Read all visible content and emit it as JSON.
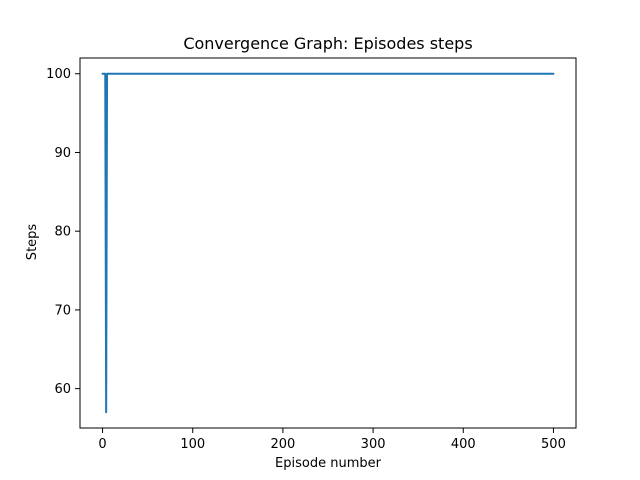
{
  "chart_data": {
    "type": "line",
    "title": "Convergence Graph: Episodes steps",
    "xlabel": "Episode number",
    "ylabel": "Steps",
    "xlim": [
      -25,
      525
    ],
    "ylim": [
      55,
      102
    ],
    "x_ticks": [
      0,
      100,
      200,
      300,
      400,
      500
    ],
    "y_ticks": [
      60,
      70,
      80,
      90,
      100
    ],
    "grid": false,
    "series": [
      {
        "color": "#1f77b4",
        "x": [
          0,
          1,
          2,
          3,
          4,
          5,
          6,
          7,
          500
        ],
        "y": [
          100,
          100,
          100,
          100,
          57,
          100,
          100,
          100,
          100
        ]
      }
    ]
  }
}
